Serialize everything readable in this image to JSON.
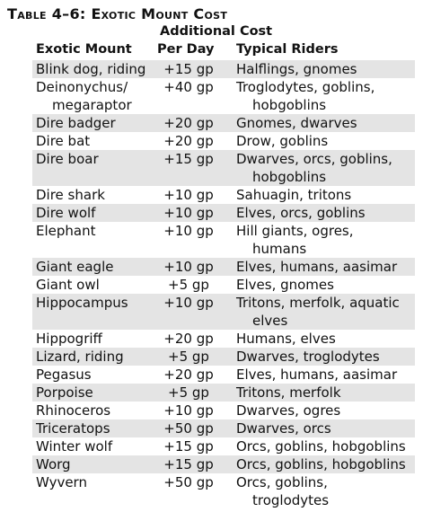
{
  "table": {
    "title": "Table 4–6: Exotic Mount Cost",
    "subheading": "Additional Cost",
    "columns": [
      "Exotic Mount",
      "Per Day",
      "Typical Riders"
    ],
    "rows": [
      {
        "mount": [
          "Blink dog, riding"
        ],
        "cost": "+15 gp",
        "riders": [
          "Halflings, gnomes"
        ]
      },
      {
        "mount": [
          "Deinonychus/",
          "megaraptor"
        ],
        "cost": "+40 gp",
        "riders": [
          "Troglodytes, goblins,",
          "hobgoblins"
        ]
      },
      {
        "mount": [
          "Dire badger"
        ],
        "cost": "+20 gp",
        "riders": [
          "Gnomes, dwarves"
        ]
      },
      {
        "mount": [
          "Dire bat"
        ],
        "cost": "+20 gp",
        "riders": [
          "Drow, goblins"
        ]
      },
      {
        "mount": [
          "Dire boar"
        ],
        "cost": "+15 gp",
        "riders": [
          "Dwarves, orcs, goblins,",
          "hobgoblins"
        ]
      },
      {
        "mount": [
          "Dire shark"
        ],
        "cost": "+10 gp",
        "riders": [
          "Sahuagin, tritons"
        ]
      },
      {
        "mount": [
          "Dire wolf"
        ],
        "cost": "+10 gp",
        "riders": [
          "Elves, orcs, goblins"
        ]
      },
      {
        "mount": [
          "Elephant"
        ],
        "cost": "+10 gp",
        "riders": [
          "Hill giants, ogres,",
          "humans"
        ]
      },
      {
        "mount": [
          "Giant eagle"
        ],
        "cost": "+10 gp",
        "riders": [
          "Elves, humans, aasimar"
        ]
      },
      {
        "mount": [
          "Giant owl"
        ],
        "cost": "+5 gp",
        "riders": [
          "Elves, gnomes"
        ]
      },
      {
        "mount": [
          "Hippocampus"
        ],
        "cost": "+10 gp",
        "riders": [
          "Tritons, merfolk, aquatic",
          "elves"
        ]
      },
      {
        "mount": [
          "Hippogriff"
        ],
        "cost": "+20 gp",
        "riders": [
          "Humans, elves"
        ]
      },
      {
        "mount": [
          "Lizard, riding"
        ],
        "cost": "+5 gp",
        "riders": [
          "Dwarves, troglodytes"
        ]
      },
      {
        "mount": [
          "Pegasus"
        ],
        "cost": "+20 gp",
        "riders": [
          "Elves, humans, aasimar"
        ]
      },
      {
        "mount": [
          "Porpoise"
        ],
        "cost": "+5 gp",
        "riders": [
          "Tritons, merfolk"
        ]
      },
      {
        "mount": [
          "Rhinoceros"
        ],
        "cost": "+10 gp",
        "riders": [
          "Dwarves, ogres"
        ]
      },
      {
        "mount": [
          "Triceratops"
        ],
        "cost": "+50 gp",
        "riders": [
          "Dwarves, orcs"
        ]
      },
      {
        "mount": [
          "Winter wolf"
        ],
        "cost": "+15 gp",
        "riders": [
          "Orcs, goblins, hobgoblins"
        ]
      },
      {
        "mount": [
          "Worg"
        ],
        "cost": "+15 gp",
        "riders": [
          "Orcs, goblins, hobgoblins"
        ]
      },
      {
        "mount": [
          "Wyvern"
        ],
        "cost": "+50 gp",
        "riders": [
          "Orcs, goblins,",
          "troglodytes"
        ]
      }
    ]
  }
}
